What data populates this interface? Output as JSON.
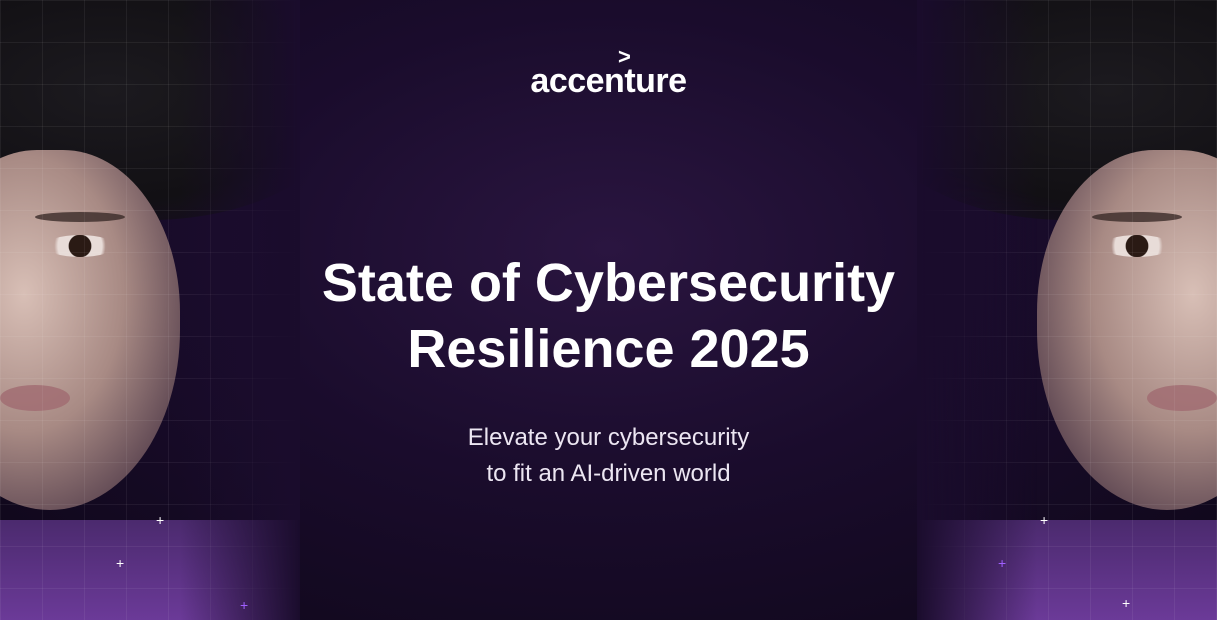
{
  "logo": {
    "text": "accenture",
    "mark": ">"
  },
  "title": {
    "line1": "State of Cybersecurity",
    "line2": "Resilience 2025"
  },
  "subtitle": {
    "line1": "Elevate your cybersecurity",
    "line2": "to fit an AI-driven world"
  },
  "colors": {
    "background": "#1a0c2c",
    "accent": "#6b3a98",
    "text": "#ffffff"
  }
}
